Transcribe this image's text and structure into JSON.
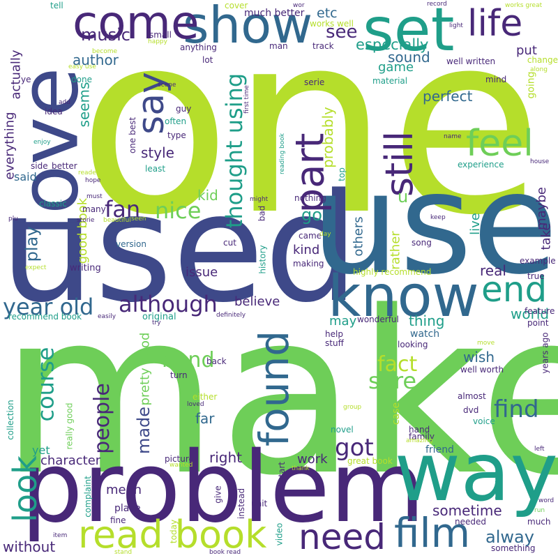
{
  "palette": {
    "lime": "#b5de2b",
    "green": "#6ece58",
    "teal": "#1f9e89",
    "blue": "#31688e",
    "indigo": "#3e4989",
    "violet": "#482878",
    "deep": "#440154"
  },
  "words": [
    {
      "text": "one",
      "c": "lime"
    },
    {
      "text": "make",
      "c": "green"
    },
    {
      "text": "used",
      "c": "indigo"
    },
    {
      "text": "use",
      "c": "blue"
    },
    {
      "text": "problem",
      "c": "violet"
    },
    {
      "text": "love",
      "c": "indigo"
    },
    {
      "text": "way",
      "c": "teal"
    },
    {
      "text": "know",
      "c": "blue"
    },
    {
      "text": "show",
      "c": "blue"
    },
    {
      "text": "come",
      "c": "violet"
    },
    {
      "text": "set",
      "c": "teal"
    },
    {
      "text": "read book",
      "c": "lime"
    },
    {
      "text": "film",
      "c": "blue"
    },
    {
      "text": "need",
      "c": "violet"
    },
    {
      "text": "found",
      "c": "blue"
    },
    {
      "text": "look",
      "c": "teal"
    },
    {
      "text": "part",
      "c": "violet"
    },
    {
      "text": "say",
      "c": "indigo"
    },
    {
      "text": "life",
      "c": "violet"
    },
    {
      "text": "feel",
      "c": "green"
    },
    {
      "text": "end",
      "c": "teal"
    },
    {
      "text": "still",
      "c": "violet"
    },
    {
      "text": "although",
      "c": "violet"
    },
    {
      "text": "year old",
      "c": "blue"
    },
    {
      "text": "thought using",
      "c": "teal"
    },
    {
      "text": "fan",
      "c": "violet"
    },
    {
      "text": "nice",
      "c": "green"
    },
    {
      "text": "course",
      "c": "teal"
    },
    {
      "text": "sure",
      "c": "green"
    },
    {
      "text": "find",
      "c": "blue"
    },
    {
      "text": "band",
      "c": "green"
    },
    {
      "text": "fact",
      "c": "lime"
    },
    {
      "text": "got",
      "c": "violet"
    },
    {
      "text": "people",
      "c": "violet"
    },
    {
      "text": "music",
      "c": "violet"
    },
    {
      "text": "see",
      "c": "violet"
    },
    {
      "text": "etc",
      "c": "blue"
    },
    {
      "text": "especially",
      "c": "teal"
    },
    {
      "text": "sound",
      "c": "blue"
    },
    {
      "text": "author",
      "c": "blue"
    },
    {
      "text": "play",
      "c": "blue"
    },
    {
      "text": "made",
      "c": "indigo"
    },
    {
      "text": "game",
      "c": "teal"
    },
    {
      "text": "put",
      "c": "violet"
    },
    {
      "text": "perfect",
      "c": "blue"
    },
    {
      "text": "probably",
      "c": "lime"
    },
    {
      "text": "style",
      "c": "violet"
    },
    {
      "text": "seems",
      "c": "teal"
    },
    {
      "text": "kid",
      "c": "green"
    },
    {
      "text": "go",
      "c": "teal"
    },
    {
      "text": "u",
      "c": "green"
    },
    {
      "text": "alway",
      "c": "blue"
    },
    {
      "text": "sometime",
      "c": "violet"
    },
    {
      "text": "work",
      "c": "violet"
    },
    {
      "text": "mean",
      "c": "violet"
    },
    {
      "text": "right",
      "c": "violet"
    },
    {
      "text": "character",
      "c": "violet"
    },
    {
      "text": "far",
      "c": "blue"
    },
    {
      "text": "wish",
      "c": "blue"
    },
    {
      "text": "thing",
      "c": "teal"
    },
    {
      "text": "may",
      "c": "teal"
    },
    {
      "text": "world",
      "c": "teal"
    },
    {
      "text": "real",
      "c": "violet"
    },
    {
      "text": "kind",
      "c": "violet"
    },
    {
      "text": "others",
      "c": "blue"
    },
    {
      "text": "believe",
      "c": "violet"
    },
    {
      "text": "issue",
      "c": "violet"
    },
    {
      "text": "pretty good",
      "c": "green"
    },
    {
      "text": "good book",
      "c": "lime"
    },
    {
      "text": "maybe",
      "c": "violet"
    },
    {
      "text": "take",
      "c": "violet"
    },
    {
      "text": "live",
      "c": "teal"
    },
    {
      "text": "rather",
      "c": "lime"
    },
    {
      "text": "everything",
      "c": "violet"
    },
    {
      "text": "actually",
      "c": "violet"
    },
    {
      "text": "said",
      "c": "blue"
    },
    {
      "text": "yet",
      "c": "teal"
    },
    {
      "text": "without",
      "c": "violet"
    },
    {
      "text": "writing",
      "c": "violet"
    },
    {
      "text": "version",
      "c": "blue"
    },
    {
      "text": "original",
      "c": "teal"
    },
    {
      "text": "place",
      "c": "violet"
    },
    {
      "text": "fine",
      "c": "violet"
    },
    {
      "text": "picture",
      "c": "violet"
    },
    {
      "text": "give",
      "c": "violet"
    },
    {
      "text": "instead",
      "c": "violet"
    },
    {
      "text": "unit",
      "c": "violet"
    },
    {
      "text": "video",
      "c": "teal"
    },
    {
      "text": "today",
      "c": "lime"
    },
    {
      "text": "complaint",
      "c": "teal"
    },
    {
      "text": "turn",
      "c": "violet"
    },
    {
      "text": "back",
      "c": "violet"
    },
    {
      "text": "either",
      "c": "lime"
    },
    {
      "text": "loved",
      "c": "violet"
    },
    {
      "text": "case",
      "c": "lime"
    },
    {
      "text": "hand",
      "c": "violet"
    },
    {
      "text": "novel",
      "c": "teal"
    },
    {
      "text": "family",
      "c": "violet"
    },
    {
      "text": "friend",
      "c": "blue"
    },
    {
      "text": "great book",
      "c": "lime"
    },
    {
      "text": "almost",
      "c": "violet"
    },
    {
      "text": "dvd",
      "c": "violet"
    },
    {
      "text": "voice",
      "c": "teal"
    },
    {
      "text": "anyway",
      "c": "teal"
    },
    {
      "text": "needed",
      "c": "violet"
    },
    {
      "text": "much",
      "c": "violet"
    },
    {
      "text": "something",
      "c": "violet"
    },
    {
      "text": "run",
      "c": "green"
    },
    {
      "text": "word",
      "c": "violet"
    },
    {
      "text": "left",
      "c": "violet"
    },
    {
      "text": "years ago",
      "c": "violet"
    },
    {
      "text": "point",
      "c": "violet"
    },
    {
      "text": "move",
      "c": "lime"
    },
    {
      "text": "feature",
      "c": "violet"
    },
    {
      "text": "true",
      "c": "violet"
    },
    {
      "text": "example",
      "c": "violet"
    },
    {
      "text": "song",
      "c": "violet"
    },
    {
      "text": "came",
      "c": "violet"
    },
    {
      "text": "cut",
      "c": "violet"
    },
    {
      "text": "history",
      "c": "teal"
    },
    {
      "text": "making",
      "c": "violet"
    },
    {
      "text": "highly recommend",
      "c": "lime"
    },
    {
      "text": "wonderful",
      "c": "violet"
    },
    {
      "text": "watch",
      "c": "blue"
    },
    {
      "text": "help",
      "c": "violet"
    },
    {
      "text": "stuff",
      "c": "violet"
    },
    {
      "text": "looking",
      "c": "violet"
    },
    {
      "text": "well worth",
      "c": "violet"
    },
    {
      "text": "definitely",
      "c": "violet"
    },
    {
      "text": "try",
      "c": "violet"
    },
    {
      "text": "recommend book",
      "c": "teal"
    },
    {
      "text": "easily",
      "c": "violet"
    },
    {
      "text": "really good",
      "c": "green"
    },
    {
      "text": "collection",
      "c": "teal"
    },
    {
      "text": "group",
      "c": "lime"
    },
    {
      "text": "amazing",
      "c": "lime"
    },
    {
      "text": "start",
      "c": "violet"
    },
    {
      "text": "thank",
      "c": "lime"
    },
    {
      "text": "wanted",
      "c": "lime"
    },
    {
      "text": "item",
      "c": "violet"
    },
    {
      "text": "stand",
      "c": "lime"
    },
    {
      "text": "book read",
      "c": "violet"
    },
    {
      "text": "nothing",
      "c": "violet"
    },
    {
      "text": "bad",
      "c": "violet"
    },
    {
      "text": "might",
      "c": "violet"
    },
    {
      "text": "day",
      "c": "lime"
    },
    {
      "text": "keep",
      "c": "violet"
    },
    {
      "text": "seen",
      "c": "lime"
    },
    {
      "text": "storie",
      "c": "violet"
    },
    {
      "text": "beautiful",
      "c": "lime"
    },
    {
      "text": "plu",
      "c": "violet"
    },
    {
      "text": "expect",
      "c": "lime"
    },
    {
      "text": "classic",
      "c": "teal"
    },
    {
      "text": "many",
      "c": "violet"
    },
    {
      "text": "hope",
      "c": "violet"
    },
    {
      "text": "must",
      "c": "violet"
    },
    {
      "text": "reader",
      "c": "lime"
    },
    {
      "text": "side",
      "c": "violet"
    },
    {
      "text": "better",
      "c": "violet"
    },
    {
      "text": "least",
      "c": "teal"
    },
    {
      "text": "type",
      "c": "violet"
    },
    {
      "text": "often",
      "c": "teal"
    },
    {
      "text": "guy",
      "c": "violet"
    },
    {
      "text": "one best",
      "c": "violet"
    },
    {
      "text": "idea",
      "c": "violet"
    },
    {
      "text": "enjoy",
      "c": "teal"
    },
    {
      "text": "add",
      "c": "violet"
    },
    {
      "text": "done",
      "c": "teal"
    },
    {
      "text": "scene",
      "c": "violet"
    },
    {
      "text": "ye",
      "c": "violet"
    },
    {
      "text": "easy use",
      "c": "lime"
    },
    {
      "text": "become",
      "c": "lime"
    },
    {
      "text": "happy",
      "c": "lime"
    },
    {
      "text": "small",
      "c": "violet"
    },
    {
      "text": "anything",
      "c": "violet"
    },
    {
      "text": "lot",
      "c": "violet"
    },
    {
      "text": "man",
      "c": "violet"
    },
    {
      "text": "track",
      "c": "violet"
    },
    {
      "text": "material",
      "c": "teal"
    },
    {
      "text": "first time",
      "c": "violet"
    },
    {
      "text": "serie",
      "c": "violet"
    },
    {
      "text": "reading book",
      "c": "teal"
    },
    {
      "text": "top",
      "c": "teal"
    },
    {
      "text": "experience",
      "c": "teal"
    },
    {
      "text": "name",
      "c": "violet"
    },
    {
      "text": "someone",
      "c": "lime"
    },
    {
      "text": "house",
      "c": "violet"
    },
    {
      "text": "mind",
      "c": "violet"
    },
    {
      "text": "going",
      "c": "lime"
    },
    {
      "text": "well written",
      "c": "violet"
    },
    {
      "text": "change",
      "c": "lime"
    },
    {
      "text": "along",
      "c": "lime"
    },
    {
      "text": "light",
      "c": "violet"
    },
    {
      "text": "works great",
      "c": "lime"
    },
    {
      "text": "record",
      "c": "violet"
    },
    {
      "text": "works well",
      "c": "lime"
    },
    {
      "text": "much better",
      "c": "violet"
    },
    {
      "text": "cover",
      "c": "lime"
    },
    {
      "text": "tell",
      "c": "teal"
    },
    {
      "text": "wor",
      "c": "violet"
    }
  ]
}
